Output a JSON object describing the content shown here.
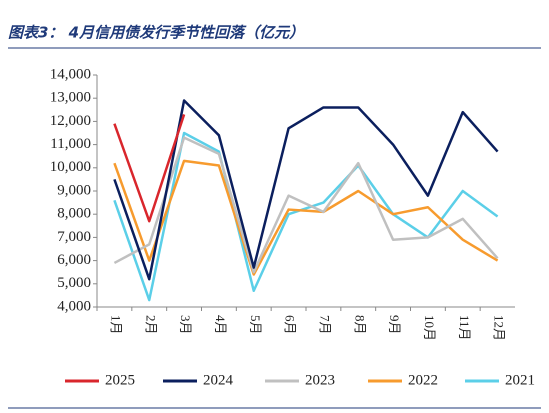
{
  "chart_data": {
    "type": "line",
    "title": "图表3： 4月信用债发行季节性回落（亿元）",
    "categories": [
      "1月",
      "2月",
      "3月",
      "4月",
      "5月",
      "6月",
      "7月",
      "8月",
      "9月",
      "10月",
      "11月",
      "12月"
    ],
    "series": [
      {
        "name": "2025",
        "color": "#d9262c",
        "values": [
          11900,
          7700,
          12300,
          null,
          null,
          null,
          null,
          null,
          null,
          null,
          null,
          null
        ]
      },
      {
        "name": "2024",
        "color": "#0b1f5e",
        "values": [
          9500,
          5200,
          12900,
          11400,
          5700,
          11700,
          12600,
          12600,
          11000,
          8800,
          12400,
          10700
        ]
      },
      {
        "name": "2023",
        "color": "#c0c0c0",
        "values": [
          5900,
          6700,
          11300,
          10600,
          5500,
          8800,
          8100,
          10200,
          6900,
          7000,
          7800,
          6100
        ]
      },
      {
        "name": "2022",
        "color": "#f79b2e",
        "values": [
          10200,
          6000,
          10300,
          10100,
          5400,
          8200,
          8100,
          9000,
          8000,
          8300,
          6900,
          6000
        ]
      },
      {
        "name": "2021",
        "color": "#5bcfe8",
        "values": [
          8600,
          4300,
          11500,
          10700,
          4700,
          8000,
          8500,
          10100,
          8000,
          7000,
          9000,
          7900
        ]
      }
    ],
    "ylim": [
      4000,
      14000
    ],
    "yticks": [
      {
        "value": 4000,
        "label": "4,000"
      },
      {
        "value": 5000,
        "label": "5,000"
      },
      {
        "value": 6000,
        "label": "6,000"
      },
      {
        "value": 7000,
        "label": "7,000"
      },
      {
        "value": 8000,
        "label": "8,000"
      },
      {
        "value": 9000,
        "label": "9,000"
      },
      {
        "value": 10000,
        "label": "10,000"
      },
      {
        "value": 11000,
        "label": "11,000"
      },
      {
        "value": 12000,
        "label": "12,000"
      },
      {
        "value": 13000,
        "label": "13,000"
      },
      {
        "value": 14000,
        "label": "14,000"
      }
    ],
    "legend": "bottom"
  }
}
